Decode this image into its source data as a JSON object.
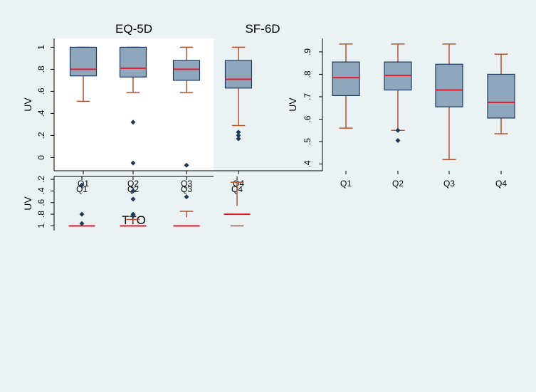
{
  "colors": {
    "page_background": "#eaf2f3",
    "plot_background": "#ffffff",
    "box_fill": "#8fa7bd",
    "box_edge": "#1c3a5c",
    "median": "#e8192c",
    "whisker": "#b5522f",
    "outlier": "#1c3a5c",
    "axis": "#000000"
  },
  "chart_data": [
    {
      "type": "box",
      "title": "EQ-5D",
      "ylabel": "UV",
      "ylim": [
        -0.12,
        1.08
      ],
      "yticks": [
        {
          "value": 0,
          "label": "0"
        },
        {
          "value": 0.2,
          "label": ".2"
        },
        {
          "value": 0.4,
          "label": ".4"
        },
        {
          "value": 0.6,
          "label": ".6"
        },
        {
          "value": 0.8,
          "label": ".8"
        },
        {
          "value": 1,
          "label": "1"
        }
      ],
      "categories": [
        "Q1",
        "Q2",
        "Q3",
        "Q4"
      ],
      "boxes": [
        {
          "whisker_low": 0.51,
          "q1": 0.74,
          "median": 0.8,
          "q3": 1.0,
          "whisker_high": 1.0,
          "outliers": []
        },
        {
          "whisker_low": 0.59,
          "q1": 0.73,
          "median": 0.81,
          "q3": 1.0,
          "whisker_high": 1.0,
          "outliers": [
            0.32,
            -0.05
          ]
        },
        {
          "whisker_low": 0.59,
          "q1": 0.7,
          "median": 0.8,
          "q3": 0.88,
          "whisker_high": 1.0,
          "outliers": [
            -0.07
          ]
        },
        {
          "whisker_low": 0.29,
          "q1": 0.63,
          "median": 0.71,
          "q3": 0.88,
          "whisker_high": 1.0,
          "outliers": [
            0.23,
            0.2,
            0.17
          ]
        }
      ]
    },
    {
      "type": "box",
      "title": "SF-6D",
      "ylabel": "UV",
      "ylim": [
        0.37,
        0.96
      ],
      "yticks": [
        {
          "value": 0.4,
          "label": ".4"
        },
        {
          "value": 0.5,
          "label": ".5"
        },
        {
          "value": 0.6,
          "label": ".6"
        },
        {
          "value": 0.7,
          "label": ".7"
        },
        {
          "value": 0.8,
          "label": ".8"
        },
        {
          "value": 0.9,
          "label": ".9"
        }
      ],
      "categories": [
        "Q1",
        "Q2",
        "Q3",
        "Q4"
      ],
      "boxes": [
        {
          "whisker_low": 0.56,
          "q1": 0.705,
          "median": 0.785,
          "q3": 0.855,
          "whisker_high": 0.935,
          "outliers": []
        },
        {
          "whisker_low": 0.55,
          "q1": 0.73,
          "median": 0.795,
          "q3": 0.855,
          "whisker_high": 0.935,
          "outliers": [
            0.55,
            0.505
          ]
        },
        {
          "whisker_low": 0.42,
          "q1": 0.655,
          "median": 0.73,
          "q3": 0.845,
          "whisker_high": 0.935,
          "outliers": []
        },
        {
          "whisker_low": 0.535,
          "q1": 0.605,
          "median": 0.675,
          "q3": 0.8,
          "whisker_high": 0.89,
          "outliers": []
        }
      ]
    },
    {
      "type": "box",
      "title": "TTO",
      "ylabel": "UV",
      "ylim": [
        0.15,
        1.08
      ],
      "yticks": [
        {
          "value": 0.2,
          "label": ".2"
        },
        {
          "value": 0.4,
          "label": ".4"
        },
        {
          "value": 0.6,
          "label": ".6"
        },
        {
          "value": 0.8,
          "label": ".8"
        },
        {
          "value": 1,
          "label": "1"
        }
      ],
      "categories": [
        "Q1",
        "Q2",
        "Q3",
        "Q4"
      ],
      "boxes": [
        {
          "whisker_low": 1.0,
          "q1": 1.0,
          "median": 1.0,
          "q3": 1.0,
          "whisker_high": 1.0,
          "outliers": [
            0.96,
            0.8,
            0.3
          ]
        },
        {
          "whisker_low": 0.89,
          "q1": 0.96,
          "median": 1.0,
          "q3": 1.0,
          "whisker_high": 1.0,
          "outliers": [
            0.83,
            0.8,
            0.54,
            0.4
          ]
        },
        {
          "whisker_low": 0.75,
          "q1": 0.855,
          "median": 1.0,
          "q3": 1.0,
          "whisker_high": 1.0,
          "outliers": [
            0.5
          ]
        },
        {
          "whisker_low": 0.25,
          "q1": 0.655,
          "median": 0.8,
          "q3": 1.0,
          "whisker_high": 1.0,
          "outliers": []
        }
      ]
    }
  ]
}
